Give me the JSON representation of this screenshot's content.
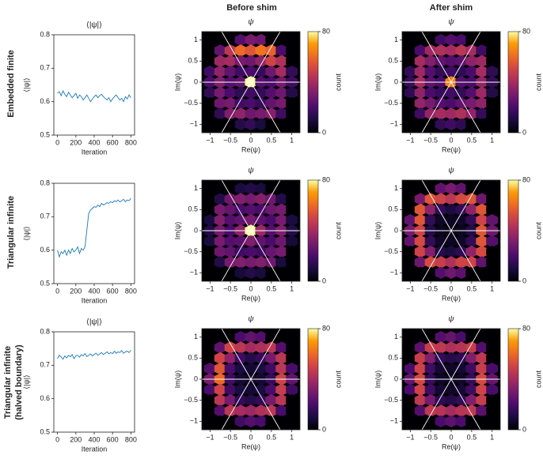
{
  "column_headers": [
    "Before shim",
    "After shim"
  ],
  "row_labels": [
    [
      "Embedded finite"
    ],
    [
      "Triangular infinite"
    ],
    [
      "Triangular infinite",
      "(halved boundary)"
    ]
  ],
  "chart_data": [
    {
      "type": "line",
      "title": "⟨|ψ|⟩",
      "xlabel": "Iteration",
      "ylabel": "⟨|ψ|⟩",
      "color": "#1f77b4",
      "xlim": [
        -40,
        840
      ],
      "ylim": [
        0.5,
        0.8
      ],
      "xticks": [
        0,
        200,
        400,
        600,
        800
      ],
      "yticks": [
        0.5,
        0.6,
        0.7,
        0.8
      ],
      "x": [
        0,
        20,
        40,
        60,
        80,
        100,
        120,
        140,
        160,
        180,
        200,
        220,
        240,
        260,
        280,
        300,
        320,
        340,
        360,
        380,
        400,
        420,
        440,
        460,
        480,
        500,
        520,
        540,
        560,
        580,
        600,
        620,
        640,
        660,
        680,
        700,
        720,
        740,
        760,
        780,
        800
      ],
      "values": [
        0.625,
        0.63,
        0.618,
        0.632,
        0.622,
        0.615,
        0.628,
        0.62,
        0.612,
        0.618,
        0.625,
        0.61,
        0.62,
        0.615,
        0.605,
        0.612,
        0.62,
        0.61,
        0.6,
        0.608,
        0.615,
        0.62,
        0.612,
        0.618,
        0.622,
        0.615,
        0.61,
        0.605,
        0.612,
        0.6,
        0.608,
        0.615,
        0.62,
        0.612,
        0.605,
        0.61,
        0.6,
        0.615,
        0.608,
        0.62,
        0.612
      ]
    },
    {
      "type": "hexbin",
      "title": "ψ",
      "xlabel": "Re(ψ)",
      "ylabel": "Im(ψ)",
      "clabel": "count",
      "xlim": [
        -1.2,
        1.2
      ],
      "ylim": [
        -1.2,
        1.2
      ],
      "clim": [
        0,
        80
      ],
      "cticks": [
        0,
        80
      ],
      "xticks": [
        {
          "value": -1,
          "label": "−1"
        },
        {
          "value": -0.5,
          "label": "−0.5"
        },
        0,
        0.5,
        1
      ],
      "yticks": [
        {
          "value": -1,
          "label": "−1"
        },
        {
          "value": -0.5,
          "label": "−0.5"
        },
        0,
        0.5,
        1
      ],
      "x": [
        -1,
        -0.75,
        -0.5,
        -0.25,
        0,
        0.25,
        0.5,
        0.75,
        1
      ],
      "y": [
        1,
        0.75,
        0.5,
        0.25,
        0,
        -0.25,
        -0.5,
        -0.75,
        -1
      ],
      "values": [
        [
          0,
          0,
          0,
          22,
          30,
          28,
          0,
          0,
          0
        ],
        [
          0,
          25,
          45,
          60,
          55,
          62,
          58,
          20,
          0
        ],
        [
          0,
          38,
          40,
          30,
          28,
          35,
          50,
          42,
          0
        ],
        [
          18,
          35,
          25,
          18,
          20,
          16,
          28,
          40,
          15
        ],
        [
          20,
          32,
          22,
          25,
          80,
          22,
          20,
          30,
          18
        ],
        [
          15,
          30,
          20,
          14,
          18,
          15,
          22,
          28,
          12
        ],
        [
          0,
          28,
          30,
          18,
          20,
          16,
          25,
          30,
          0
        ],
        [
          0,
          15,
          32,
          35,
          28,
          30,
          33,
          18,
          0
        ],
        [
          0,
          0,
          0,
          12,
          15,
          10,
          0,
          0,
          0
        ]
      ]
    },
    {
      "type": "hexbin",
      "title": "ψ",
      "xlabel": "Re(ψ)",
      "ylabel": "Im(ψ)",
      "clabel": "count",
      "xlim": [
        -1.2,
        1.2
      ],
      "ylim": [
        -1.2,
        1.2
      ],
      "clim": [
        0,
        80
      ],
      "cticks": [
        0,
        80
      ],
      "xticks": [
        {
          "value": -1,
          "label": "−1"
        },
        {
          "value": -0.5,
          "label": "−0.5"
        },
        0,
        0.5,
        1
      ],
      "yticks": [
        {
          "value": -1,
          "label": "−1"
        },
        {
          "value": -0.5,
          "label": "−0.5"
        },
        0,
        0.5,
        1
      ],
      "x": [
        -1,
        -0.75,
        -0.5,
        -0.25,
        0,
        0.25,
        0.5,
        0.75,
        1
      ],
      "y": [
        1,
        0.75,
        0.5,
        0.25,
        0,
        -0.25,
        -0.5,
        -0.75,
        -1
      ],
      "values": [
        [
          0,
          0,
          0,
          18,
          22,
          20,
          0,
          0,
          0
        ],
        [
          0,
          20,
          38,
          42,
          40,
          45,
          40,
          18,
          0
        ],
        [
          0,
          40,
          32,
          25,
          22,
          24,
          35,
          38,
          0
        ],
        [
          15,
          38,
          22,
          15,
          18,
          14,
          20,
          40,
          14
        ],
        [
          16,
          40,
          24,
          20,
          65,
          22,
          20,
          36,
          15
        ],
        [
          14,
          35,
          20,
          16,
          18,
          15,
          22,
          38,
          12
        ],
        [
          0,
          36,
          30,
          22,
          20,
          25,
          30,
          35,
          0
        ],
        [
          0,
          18,
          36,
          40,
          38,
          42,
          35,
          16,
          0
        ],
        [
          0,
          0,
          0,
          15,
          18,
          14,
          0,
          0,
          0
        ]
      ]
    },
    {
      "type": "line",
      "xlabel": "Iteration",
      "ylabel": "⟨|ψ|⟩",
      "color": "#1f77b4",
      "xlim": [
        -40,
        840
      ],
      "ylim": [
        0.5,
        0.8
      ],
      "xticks": [
        0,
        200,
        400,
        600,
        800
      ],
      "yticks": [
        0.5,
        0.6,
        0.7,
        0.8
      ],
      "x": [
        0,
        20,
        40,
        60,
        80,
        100,
        120,
        140,
        160,
        180,
        200,
        220,
        240,
        260,
        280,
        300,
        320,
        340,
        360,
        380,
        400,
        420,
        440,
        460,
        480,
        500,
        520,
        540,
        560,
        580,
        600,
        620,
        640,
        660,
        680,
        700,
        720,
        740,
        760,
        780,
        800
      ],
      "values": [
        0.6,
        0.58,
        0.595,
        0.59,
        0.6,
        0.585,
        0.6,
        0.59,
        0.605,
        0.595,
        0.6,
        0.61,
        0.59,
        0.605,
        0.6,
        0.61,
        0.66,
        0.71,
        0.72,
        0.725,
        0.73,
        0.728,
        0.735,
        0.73,
        0.74,
        0.735,
        0.738,
        0.742,
        0.74,
        0.745,
        0.742,
        0.748,
        0.745,
        0.75,
        0.744,
        0.748,
        0.752,
        0.745,
        0.75,
        0.748,
        0.755
      ]
    },
    {
      "type": "hexbin",
      "title": "ψ",
      "xlabel": "Re(ψ)",
      "ylabel": "Im(ψ)",
      "clabel": "count",
      "xlim": [
        -1.2,
        1.2
      ],
      "ylim": [
        -1.2,
        1.2
      ],
      "clim": [
        0,
        80
      ],
      "cticks": [
        0,
        80
      ],
      "xticks": [
        {
          "value": -1,
          "label": "−1"
        },
        {
          "value": -0.5,
          "label": "−0.5"
        },
        0,
        0.5,
        1
      ],
      "yticks": [
        {
          "value": -1,
          "label": "−1"
        },
        {
          "value": -0.5,
          "label": "−0.5"
        },
        0,
        0.5,
        1
      ],
      "x": [
        -1,
        -0.75,
        -0.5,
        -0.25,
        0,
        0.25,
        0.5,
        0.75,
        1
      ],
      "y": [
        1,
        0.75,
        0.5,
        0.25,
        0,
        -0.25,
        -0.5,
        -0.75,
        -1
      ],
      "values": [
        [
          0,
          0,
          0,
          10,
          12,
          10,
          0,
          0,
          0
        ],
        [
          0,
          12,
          28,
          32,
          30,
          33,
          28,
          12,
          0
        ],
        [
          0,
          30,
          26,
          20,
          22,
          20,
          28,
          30,
          0
        ],
        [
          10,
          32,
          22,
          25,
          30,
          24,
          20,
          30,
          10
        ],
        [
          12,
          30,
          20,
          35,
          80,
          38,
          22,
          32,
          12
        ],
        [
          10,
          30,
          22,
          24,
          32,
          25,
          20,
          28,
          9
        ],
        [
          0,
          28,
          25,
          18,
          20,
          18,
          26,
          30,
          0
        ],
        [
          0,
          12,
          30,
          32,
          30,
          32,
          28,
          10,
          0
        ],
        [
          0,
          0,
          0,
          9,
          12,
          10,
          0,
          0,
          0
        ]
      ]
    },
    {
      "type": "hexbin",
      "title": "ψ",
      "xlabel": "Re(ψ)",
      "ylabel": "Im(ψ)",
      "clabel": "count",
      "xlim": [
        -1.2,
        1.2
      ],
      "ylim": [
        -1.2,
        1.2
      ],
      "clim": [
        0,
        80
      ],
      "cticks": [
        0,
        80
      ],
      "xticks": [
        {
          "value": -1,
          "label": "−1"
        },
        {
          "value": -0.5,
          "label": "−0.5"
        },
        0,
        0.5,
        1
      ],
      "yticks": [
        {
          "value": -1,
          "label": "−1"
        },
        {
          "value": -0.5,
          "label": "−0.5"
        },
        0,
        0.5,
        1
      ],
      "x": [
        -1,
        -0.75,
        -0.5,
        -0.25,
        0,
        0.25,
        0.5,
        0.75,
        1
      ],
      "y": [
        1,
        0.75,
        0.5,
        0.25,
        0,
        -0.25,
        -0.5,
        -0.75,
        -1
      ],
      "values": [
        [
          0,
          0,
          0,
          25,
          30,
          25,
          0,
          0,
          0
        ],
        [
          0,
          30,
          55,
          50,
          45,
          52,
          55,
          28,
          0
        ],
        [
          0,
          55,
          35,
          15,
          10,
          15,
          35,
          55,
          0
        ],
        [
          25,
          55,
          15,
          6,
          5,
          6,
          15,
          50,
          25
        ],
        [
          30,
          50,
          12,
          5,
          4,
          5,
          12,
          55,
          28
        ],
        [
          25,
          52,
          15,
          6,
          5,
          6,
          15,
          55,
          22
        ],
        [
          0,
          50,
          32,
          12,
          10,
          14,
          35,
          52,
          0
        ],
        [
          0,
          28,
          52,
          48,
          42,
          50,
          50,
          25,
          0
        ],
        [
          0,
          0,
          0,
          22,
          28,
          24,
          0,
          0,
          0
        ]
      ]
    },
    {
      "type": "line",
      "title": "⟨|ψ|⟩",
      "xlabel": "Iteration",
      "ylabel": "⟨|ψ|⟩",
      "color": "#1f77b4",
      "xlim": [
        -40,
        840
      ],
      "ylim": [
        0.5,
        0.8
      ],
      "xticks": [
        0,
        200,
        400,
        600,
        800
      ],
      "yticks": [
        0.5,
        0.6,
        0.7,
        0.8
      ],
      "x": [
        0,
        20,
        40,
        60,
        80,
        100,
        120,
        140,
        160,
        180,
        200,
        220,
        240,
        260,
        280,
        300,
        320,
        340,
        360,
        380,
        400,
        420,
        440,
        460,
        480,
        500,
        520,
        540,
        560,
        580,
        600,
        620,
        640,
        660,
        680,
        700,
        720,
        740,
        760,
        780,
        800
      ],
      "values": [
        0.72,
        0.73,
        0.725,
        0.718,
        0.728,
        0.722,
        0.73,
        0.725,
        0.732,
        0.72,
        0.728,
        0.73,
        0.724,
        0.732,
        0.728,
        0.735,
        0.726,
        0.73,
        0.734,
        0.728,
        0.732,
        0.736,
        0.73,
        0.734,
        0.738,
        0.732,
        0.736,
        0.74,
        0.734,
        0.738,
        0.735,
        0.742,
        0.736,
        0.74,
        0.738,
        0.744,
        0.736,
        0.74,
        0.742,
        0.738,
        0.745
      ]
    },
    {
      "type": "hexbin",
      "title": "ψ",
      "xlabel": "Re(ψ)",
      "ylabel": "Im(ψ)",
      "clabel": "count",
      "xlim": [
        -1.2,
        1.2
      ],
      "ylim": [
        -1.2,
        1.2
      ],
      "clim": [
        0,
        80
      ],
      "cticks": [
        0,
        80
      ],
      "xticks": [
        {
          "value": -1,
          "label": "−1"
        },
        {
          "value": -0.5,
          "label": "−0.5"
        },
        0,
        0.5,
        1
      ],
      "yticks": [
        {
          "value": -1,
          "label": "−1"
        },
        {
          "value": -0.5,
          "label": "−0.5"
        },
        0,
        0.5,
        1
      ],
      "x": [
        -1,
        -0.75,
        -0.5,
        -0.25,
        0,
        0.25,
        0.5,
        0.75,
        1
      ],
      "y": [
        1,
        0.75,
        0.5,
        0.25,
        0,
        -0.25,
        -0.5,
        -0.75,
        -1
      ],
      "values": [
        [
          0,
          0,
          0,
          20,
          25,
          22,
          0,
          0,
          0
        ],
        [
          0,
          25,
          50,
          45,
          40,
          42,
          45,
          22,
          0
        ],
        [
          0,
          50,
          35,
          18,
          12,
          16,
          30,
          45,
          0
        ],
        [
          22,
          55,
          20,
          10,
          8,
          10,
          18,
          45,
          20
        ],
        [
          30,
          60,
          18,
          8,
          6,
          8,
          16,
          50,
          25
        ],
        [
          20,
          50,
          18,
          10,
          8,
          10,
          20,
          48,
          18
        ],
        [
          0,
          45,
          30,
          15,
          12,
          15,
          30,
          45,
          0
        ],
        [
          0,
          22,
          45,
          40,
          38,
          42,
          45,
          20,
          0
        ],
        [
          0,
          0,
          0,
          18,
          22,
          20,
          0,
          0,
          0
        ]
      ]
    },
    {
      "type": "hexbin",
      "title": "ψ",
      "xlabel": "Re(ψ)",
      "ylabel": "Im(ψ)",
      "clabel": "count",
      "xlim": [
        -1.2,
        1.2
      ],
      "ylim": [
        -1.2,
        1.2
      ],
      "clim": [
        0,
        80
      ],
      "cticks": [
        0,
        80
      ],
      "xticks": [
        {
          "value": -1,
          "label": "−1"
        },
        {
          "value": -0.5,
          "label": "−0.5"
        },
        0,
        0.5,
        1
      ],
      "yticks": [
        {
          "value": -1,
          "label": "−1"
        },
        {
          "value": -0.5,
          "label": "−0.5"
        },
        0,
        0.5,
        1
      ],
      "x": [
        -1,
        -0.75,
        -0.5,
        -0.25,
        0,
        0.25,
        0.5,
        0.75,
        1
      ],
      "y": [
        1,
        0.75,
        0.5,
        0.25,
        0,
        -0.25,
        -0.5,
        -0.75,
        -1
      ],
      "values": [
        [
          0,
          0,
          0,
          22,
          26,
          20,
          0,
          0,
          0
        ],
        [
          0,
          24,
          48,
          46,
          42,
          44,
          48,
          22,
          0
        ],
        [
          0,
          48,
          32,
          15,
          12,
          14,
          32,
          46,
          0
        ],
        [
          20,
          50,
          18,
          8,
          6,
          8,
          18,
          48,
          20
        ],
        [
          26,
          52,
          16,
          6,
          5,
          6,
          16,
          52,
          26
        ],
        [
          20,
          50,
          18,
          8,
          6,
          8,
          18,
          50,
          20
        ],
        [
          0,
          46,
          30,
          14,
          12,
          15,
          32,
          48,
          0
        ],
        [
          0,
          22,
          46,
          44,
          40,
          44,
          46,
          24,
          0
        ],
        [
          0,
          0,
          0,
          20,
          24,
          20,
          0,
          0,
          0
        ]
      ]
    }
  ]
}
